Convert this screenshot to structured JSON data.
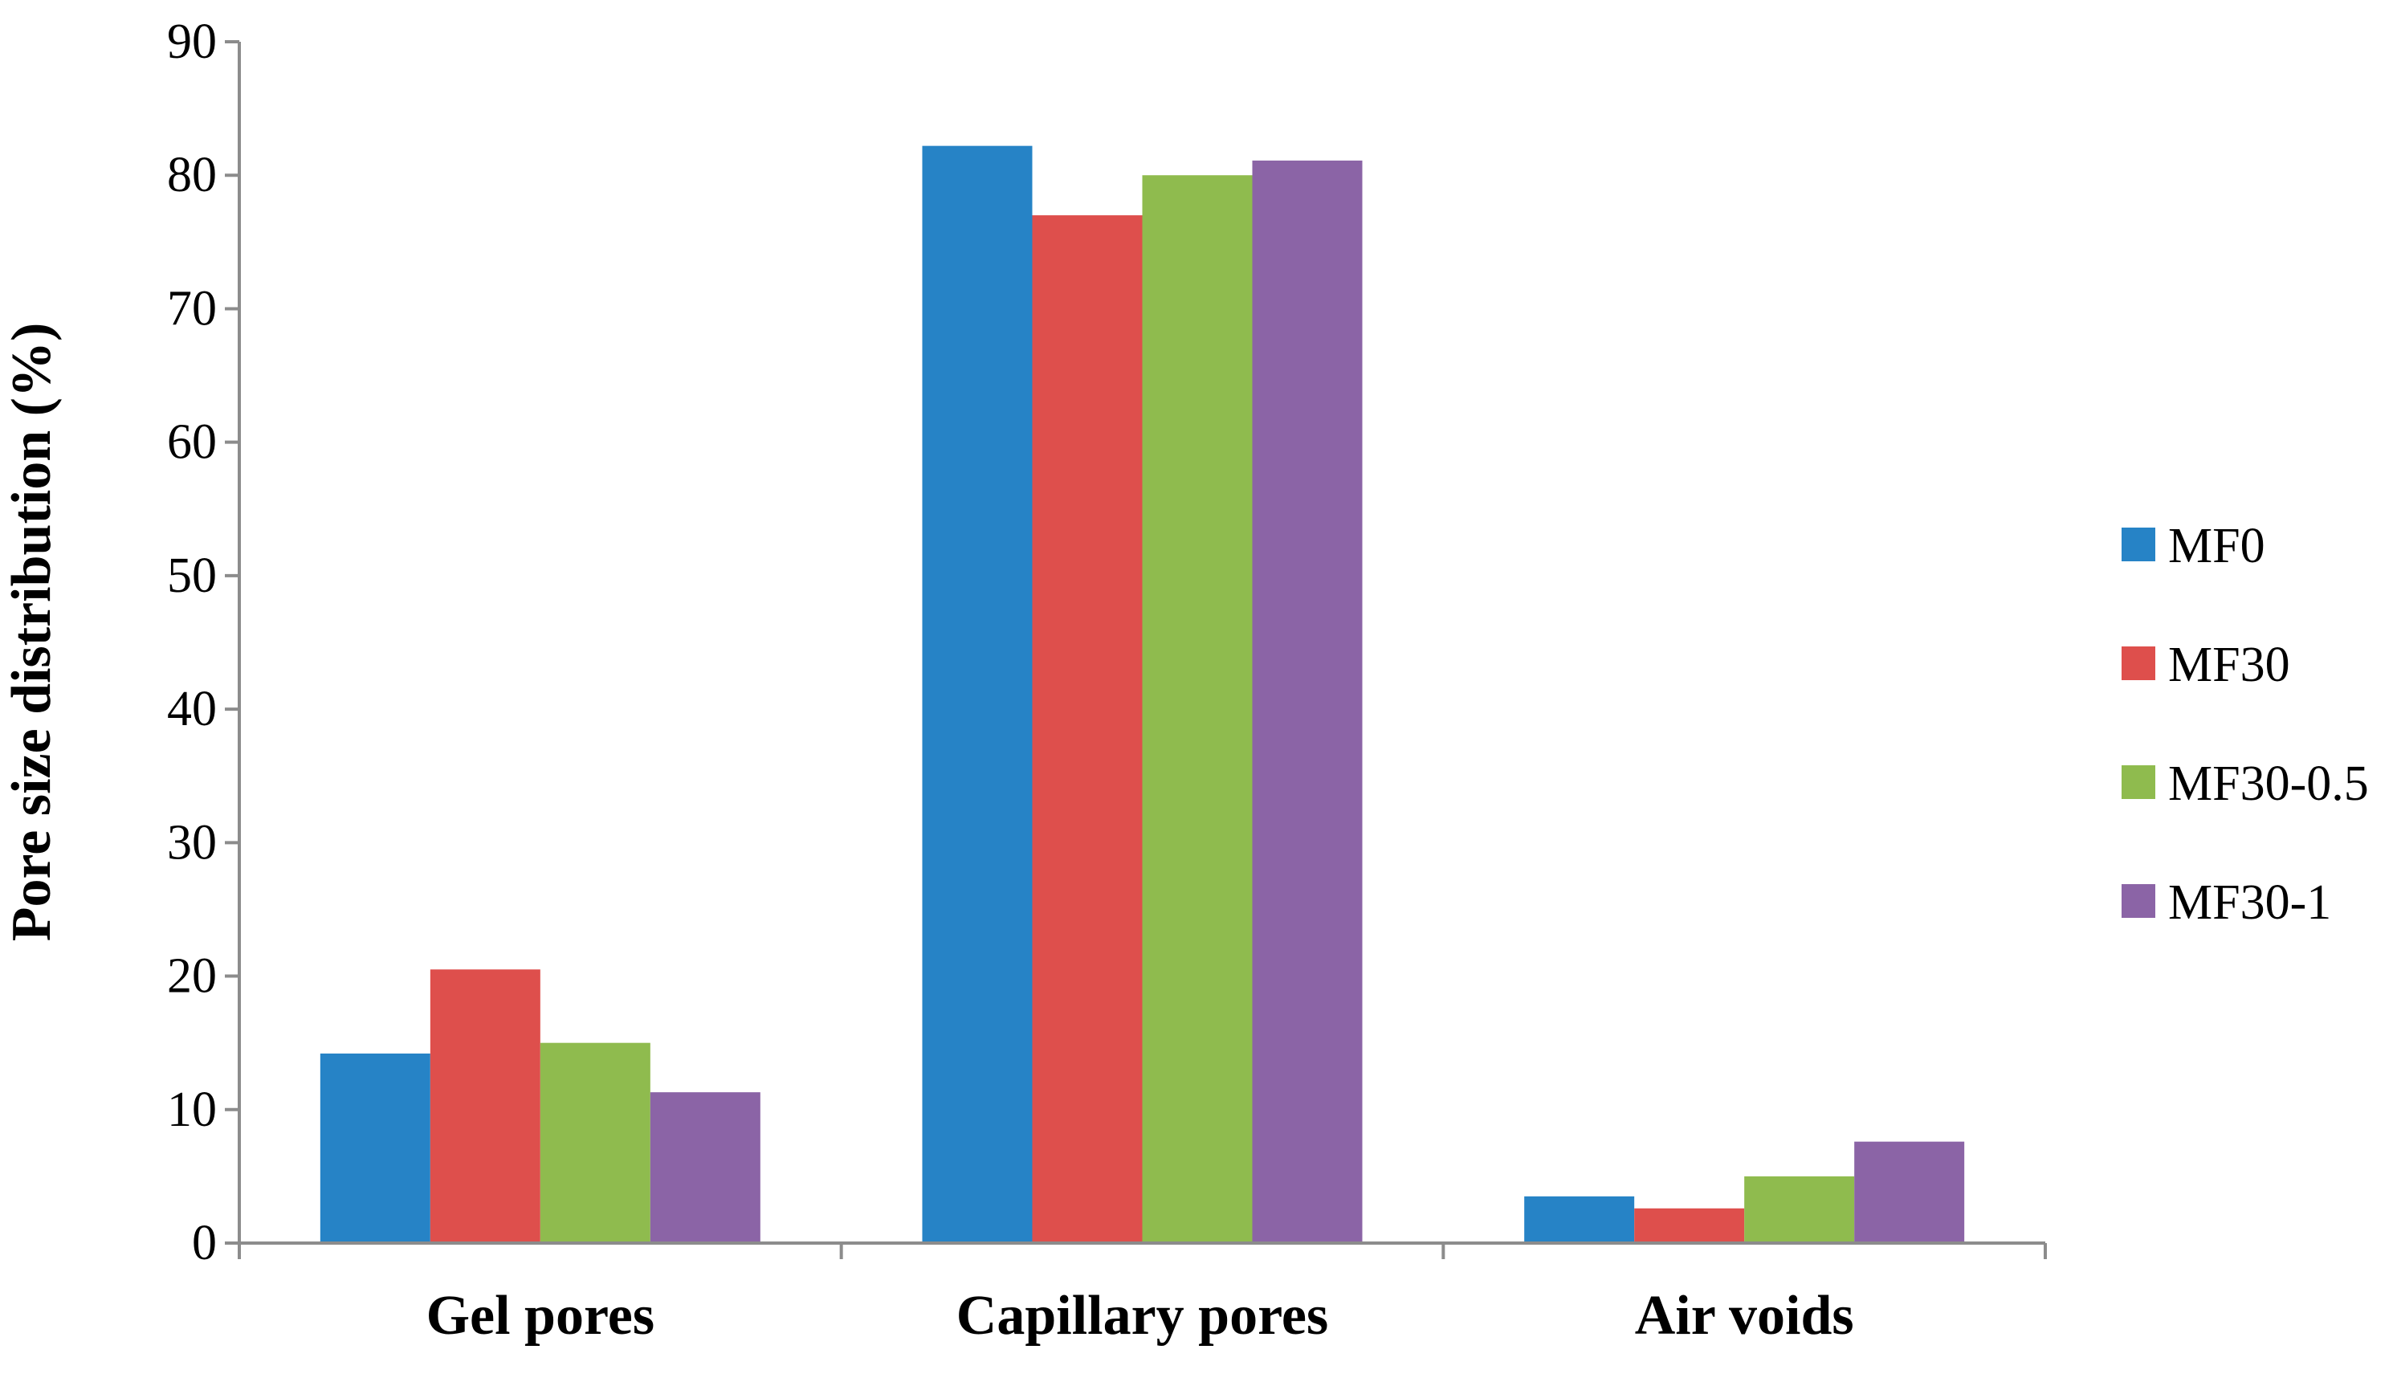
{
  "chart_data": {
    "type": "bar",
    "ylabel": "Pore size distribution (%)",
    "xlabel": "",
    "ylim": [
      0,
      90
    ],
    "yticks": [
      0,
      10,
      20,
      30,
      40,
      50,
      60,
      70,
      80,
      90
    ],
    "grid": false,
    "legend_position": "right",
    "categories": [
      "Gel pores",
      "Capillary pores",
      "Air voids"
    ],
    "series": [
      {
        "name": "MF0",
        "color": "#2683C6",
        "values": [
          14.2,
          82.2,
          3.5
        ]
      },
      {
        "name": "MF30",
        "color": "#DE4F4C",
        "values": [
          20.5,
          77.0,
          2.6
        ]
      },
      {
        "name": "MF30-0.5",
        "color": "#8FBB4E",
        "values": [
          15.0,
          80.0,
          5.0
        ]
      },
      {
        "name": "MF30-1",
        "color": "#8B64A6",
        "values": [
          11.3,
          81.1,
          7.6
        ]
      }
    ]
  }
}
